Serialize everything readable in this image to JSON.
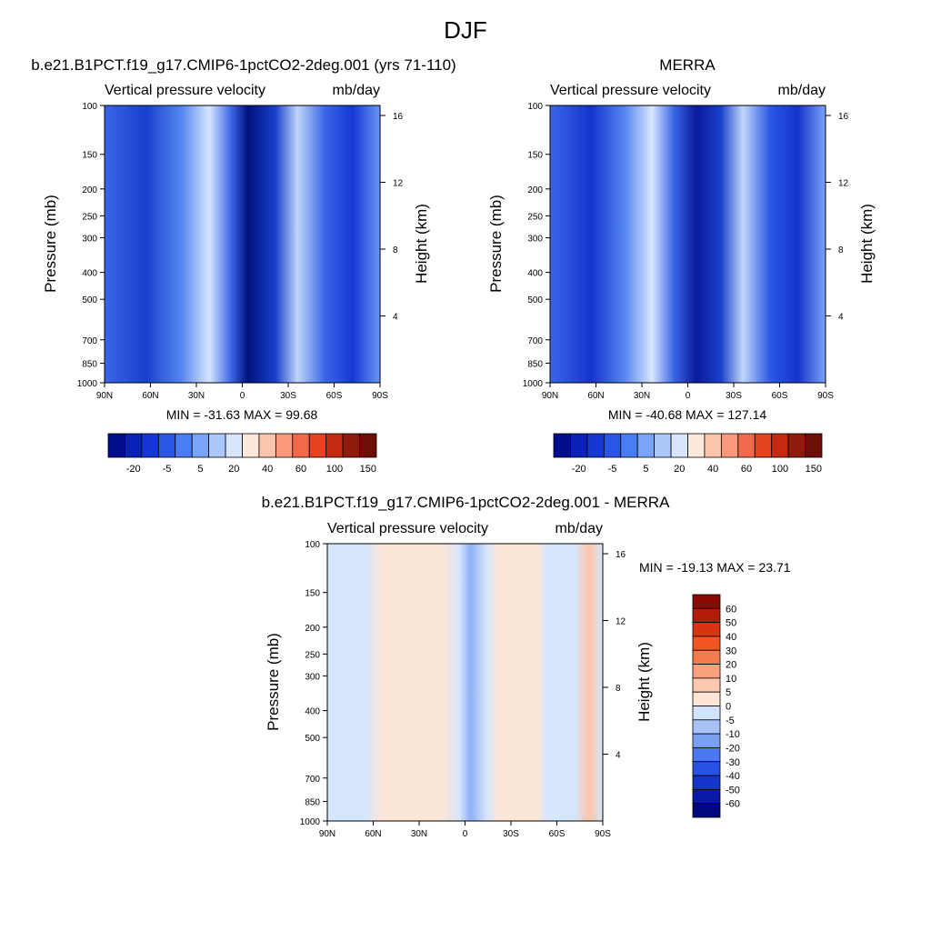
{
  "page_title": "DJF",
  "colors": {
    "main_scale": [
      "#000e8c",
      "#0a22b8",
      "#1538d4",
      "#2a56e6",
      "#4a7cf2",
      "#7aa4f8",
      "#acc8fb",
      "#d8e6fd",
      "#fde9dc",
      "#fcc4a8",
      "#f9987a",
      "#f26a4c",
      "#e3431f",
      "#c42a0f",
      "#8e1b0b",
      "#6e0f05"
    ],
    "diff_scale": [
      "#00087c",
      "#0a1aa8",
      "#1434cc",
      "#2852e4",
      "#4a78f0",
      "#7aa0f4",
      "#a8c2f8",
      "#d2e4fb",
      "#fde6d6",
      "#fcc8ae",
      "#f9a07c",
      "#f57a50",
      "#f25524",
      "#d83412",
      "#b21d08",
      "#8a0a04"
    ]
  },
  "chart_data": [
    {
      "type": "heatmap",
      "title_left": "b.e21.B1PCT.f19_g17.CMIP6-1pctCO2-2deg.001 (yrs 71-110)",
      "subtitle_left": "Vertical pressure velocity",
      "subtitle_right": "mb/day",
      "ylabel": "Pressure (mb)",
      "ylabel_right": "Height (km)",
      "x_ticks": [
        "90N",
        "60N",
        "30N",
        "0",
        "30S",
        "60S",
        "90S"
      ],
      "y_ticks": [
        "100",
        "150",
        "200",
        "250",
        "300",
        "400",
        "500",
        "700",
        "850",
        "1000"
      ],
      "y_right_ticks": [
        "16",
        "12",
        "8",
        "4"
      ],
      "ylim": [
        1000,
        100
      ],
      "stats": "MIN = -31.63  MAX =  99.68",
      "min": -31.63,
      "max": 99.68,
      "colorbar_labels": [
        "-20",
        "-5",
        "5",
        "20",
        "40",
        "60",
        "100",
        "150"
      ]
    },
    {
      "type": "heatmap",
      "title_left": "MERRA",
      "subtitle_left": "Vertical pressure velocity",
      "subtitle_right": "mb/day",
      "ylabel": "Pressure (mb)",
      "ylabel_right": "Height (km)",
      "x_ticks": [
        "90N",
        "60N",
        "30N",
        "0",
        "30S",
        "60S",
        "90S"
      ],
      "y_ticks": [
        "100",
        "150",
        "200",
        "250",
        "300",
        "400",
        "500",
        "700",
        "850",
        "1000"
      ],
      "y_right_ticks": [
        "16",
        "12",
        "8",
        "4"
      ],
      "ylim": [
        1000,
        100
      ],
      "stats": "MIN = -40.68  MAX = 127.14",
      "min": -40.68,
      "max": 127.14,
      "colorbar_labels": [
        "-20",
        "-5",
        "5",
        "20",
        "40",
        "60",
        "100",
        "150"
      ]
    },
    {
      "type": "heatmap",
      "title_left": "b.e21.B1PCT.f19_g17.CMIP6-1pctCO2-2deg.001 - MERRA",
      "subtitle_left": "Vertical pressure velocity",
      "subtitle_right": "mb/day",
      "ylabel": "Pressure (mb)",
      "ylabel_right": "Height (km)",
      "x_ticks": [
        "90N",
        "60N",
        "30N",
        "0",
        "30S",
        "60S",
        "90S"
      ],
      "y_ticks": [
        "100",
        "150",
        "200",
        "250",
        "300",
        "400",
        "500",
        "700",
        "850",
        "1000"
      ],
      "y_right_ticks": [
        "16",
        "12",
        "8",
        "4"
      ],
      "ylim": [
        1000,
        100
      ],
      "stats": "MIN = -19.13  MAX =  23.71",
      "min": -19.13,
      "max": 23.71,
      "colorbar_labels": [
        "60",
        "50",
        "40",
        "30",
        "20",
        "10",
        "5",
        "0",
        "-5",
        "-10",
        "-20",
        "-30",
        "-40",
        "-50",
        "-60"
      ]
    }
  ]
}
